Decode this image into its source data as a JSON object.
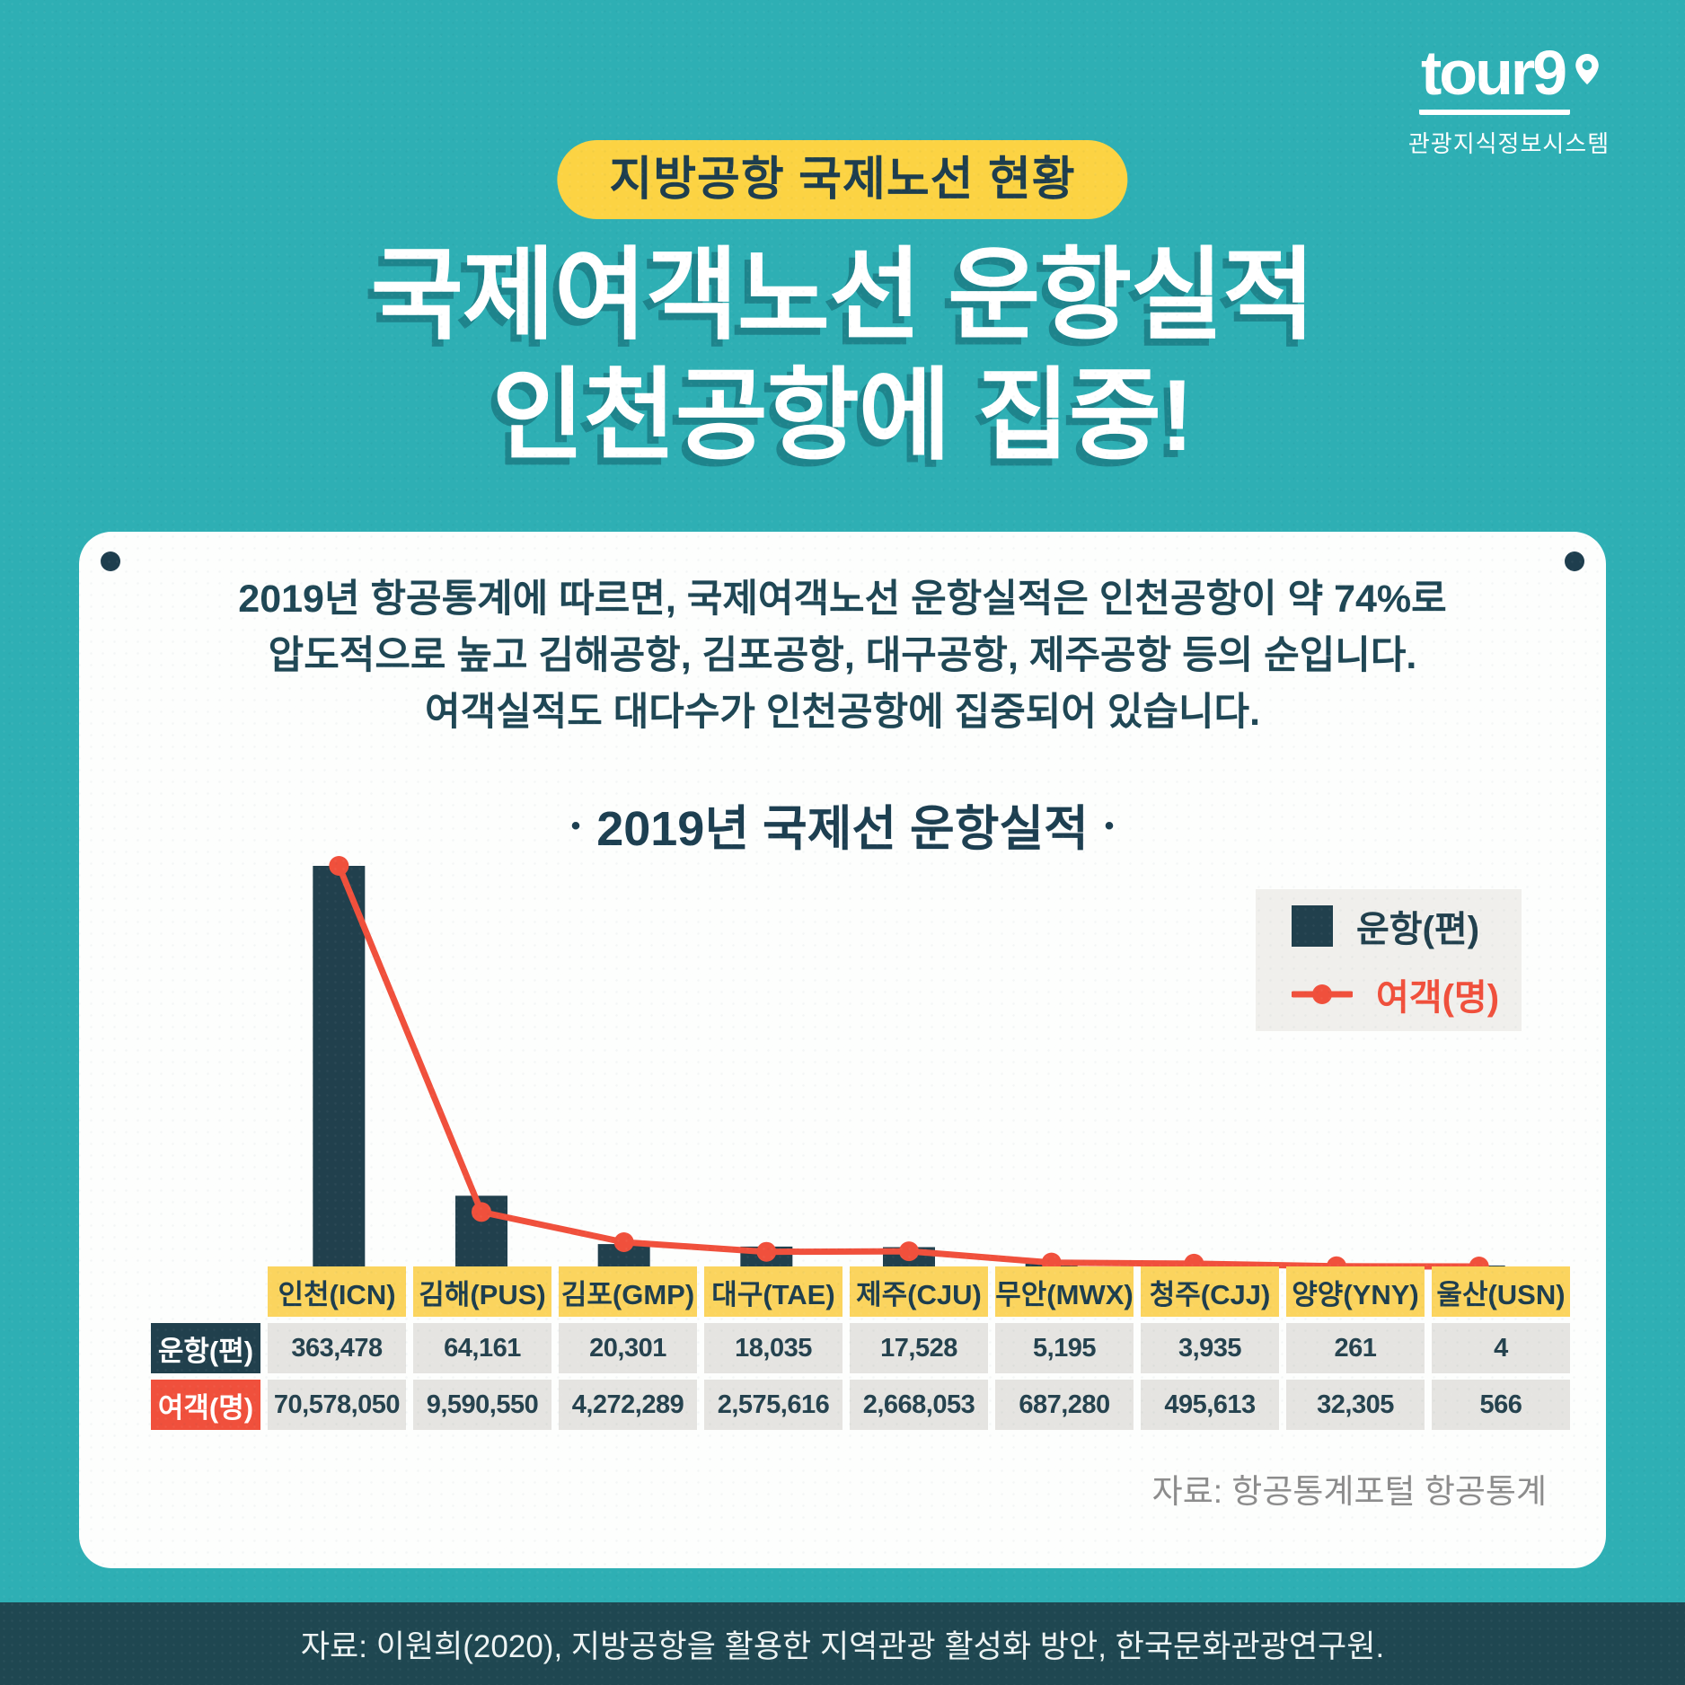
{
  "brand": {
    "logo_text": "tour9",
    "subtitle": "관광지식정보시스템"
  },
  "header": {
    "badge": "지방공항 국제노선 현황",
    "title_line1": "국제여객노선 운항실적",
    "title_line2": "인천공항에 집중!"
  },
  "card": {
    "description_lines": [
      "2019년 항공통계에 따르면, 국제여객노선 운항실적은 인천공항이 약 74%로",
      "압도적으로 높고 김해공항, 김포공항, 대구공항, 제주공항 등의 순입니다.",
      "여객실적도 대다수가 인천공항에 집중되어 있습니다."
    ],
    "source": "자료: 항공통계포털 항공통계"
  },
  "chart_data": {
    "type": "bar+line",
    "title": "2019년 국제선 운항실적",
    "title_dot": "•",
    "categories": [
      "인천(ICN)",
      "김해(PUS)",
      "김포(GMP)",
      "대구(TAE)",
      "제주(CJU)",
      "무안(MWX)",
      "청주(CJJ)",
      "양양(YNY)",
      "울산(USN)"
    ],
    "series": [
      {
        "name": "운항(편)",
        "type": "bar",
        "color": "#21404d",
        "values": [
          363478,
          64161,
          20301,
          18035,
          17528,
          5195,
          3935,
          261,
          4
        ]
      },
      {
        "name": "여객(명)",
        "type": "line",
        "color": "#f0503c",
        "values": [
          70578050,
          9590550,
          4272289,
          2575616,
          2668053,
          687280,
          495613,
          32305,
          566
        ]
      }
    ],
    "bar_axis_max": 363478,
    "line_axis_max": 70578050,
    "grid": false,
    "legend_position": "top-right"
  },
  "table": {
    "row_labels": [
      "운항(편)",
      "여객(명)"
    ]
  },
  "footer": {
    "source": "자료: 이원희(2020), 지방공항을 활용한 지역관광 활성화 방안, 한국문화관광연구원."
  },
  "colors": {
    "background_teal": "#2eafb4",
    "navy": "#21404d",
    "badge_yellow": "#fcd343",
    "table_header_yellow": "#fbd45e",
    "accent_red": "#f0503c",
    "cell_gray": "#e5e4e1",
    "footer_band": "#1f4751",
    "card_white": "#fdfefd"
  }
}
